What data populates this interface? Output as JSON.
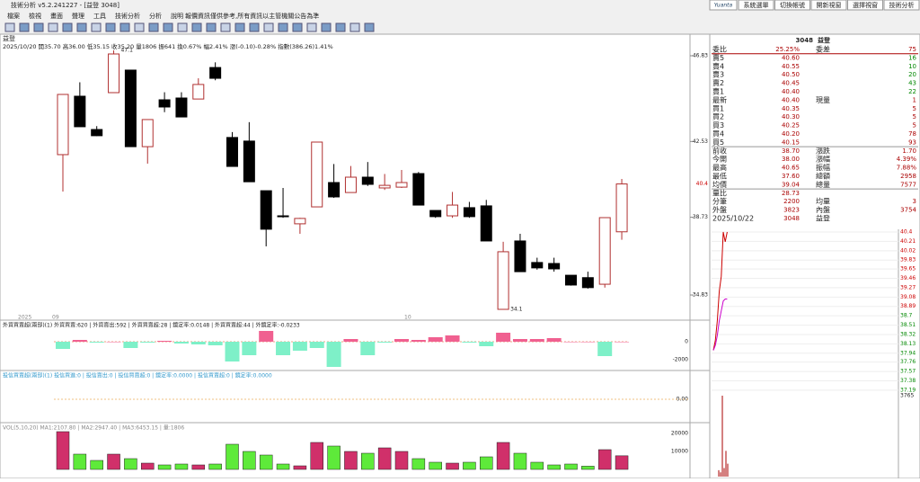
{
  "window": {
    "title": "技術分析 v5.2.241227 - [益登 3048]",
    "logo": "Yuanta",
    "buttons": [
      "系統選單",
      "切換帳號",
      "開新視窗",
      "選擇視窗",
      "技術分析"
    ]
  },
  "menu": [
    "檔案",
    "檢視",
    "畫面",
    "聲理",
    "工具",
    "技術分析",
    "分析",
    "說明"
  ],
  "notice": "報價資訊僅供參考,所有資訊以主管機關公告為準",
  "chart": {
    "stock": "益登",
    "info": "2025/10/20 開35.70 高36.00 低35.15 收35.20 量1806 振641 換0.67% 幅2.41% 漲(-0.10)-0.28% 指數(386.26)1.41%",
    "price_ticks": [
      46.83,
      42.53,
      38.73,
      34.83
    ],
    "current": 40.4,
    "high_mark": 47.1,
    "low_mark": 34.1,
    "dates": [
      "2025",
      "09",
      "10"
    ],
    "candles": [
      {
        "o": 41.87,
        "h": 44.89,
        "l": 40.02,
        "c": 44.89
      },
      {
        "o": 44.8,
        "h": 45.5,
        "l": 43.27,
        "c": 43.27
      },
      {
        "o": 43.13,
        "h": 43.3,
        "l": 42.8,
        "c": 42.82
      },
      {
        "o": 44.98,
        "h": 47.1,
        "l": 44.98,
        "c": 46.92
      },
      {
        "o": 46.11,
        "h": 46.11,
        "l": 42.27,
        "c": 42.27
      },
      {
        "o": 42.27,
        "h": 43.63,
        "l": 41.42,
        "c": 43.63
      },
      {
        "o": 44.62,
        "h": 45.0,
        "l": 44.0,
        "c": 44.26
      },
      {
        "o": 44.71,
        "h": 45.0,
        "l": 43.76,
        "c": 43.76
      },
      {
        "o": 44.66,
        "h": 45.7,
        "l": 44.66,
        "c": 45.39
      },
      {
        "o": 46.24,
        "h": 46.5,
        "l": 45.6,
        "c": 45.7
      },
      {
        "o": 42.73,
        "h": 43.0,
        "l": 41.28,
        "c": 41.28
      },
      {
        "o": 42.55,
        "h": 43.5,
        "l": 40.51,
        "c": 40.51
      },
      {
        "o": 40.06,
        "h": 40.06,
        "l": 37.27,
        "c": 38.13
      },
      {
        "o": 38.8,
        "h": 40.2,
        "l": 38.7,
        "c": 38.76
      },
      {
        "o": 38.4,
        "h": 38.7,
        "l": 37.9,
        "c": 38.67
      },
      {
        "o": 39.25,
        "h": 42.5,
        "l": 39.25,
        "c": 42.5
      },
      {
        "o": 40.47,
        "h": 41.4,
        "l": 39.7,
        "c": 39.75
      },
      {
        "o": 39.97,
        "h": 41.3,
        "l": 39.97,
        "c": 40.74
      },
      {
        "o": 40.74,
        "h": 41.5,
        "l": 40.3,
        "c": 40.38
      },
      {
        "o": 40.2,
        "h": 40.9,
        "l": 40.1,
        "c": 40.33
      },
      {
        "o": 40.24,
        "h": 41.1,
        "l": 40.2,
        "c": 40.47
      },
      {
        "o": 40.92,
        "h": 41.0,
        "l": 39.34,
        "c": 39.34
      },
      {
        "o": 39.07,
        "h": 39.07,
        "l": 38.7,
        "c": 38.76
      },
      {
        "o": 38.8,
        "h": 40.0,
        "l": 38.7,
        "c": 39.34
      },
      {
        "o": 39.21,
        "h": 39.5,
        "l": 38.7,
        "c": 38.76
      },
      {
        "o": 39.3,
        "h": 39.6,
        "l": 37.54,
        "c": 37.54
      },
      {
        "o": 34.11,
        "h": 37.5,
        "l": 34.1,
        "c": 37.0
      },
      {
        "o": 37.54,
        "h": 37.9,
        "l": 36.0,
        "c": 36.0
      },
      {
        "o": 36.46,
        "h": 36.7,
        "l": 36.1,
        "c": 36.19
      },
      {
        "o": 36.41,
        "h": 36.7,
        "l": 36.0,
        "c": 36.14
      },
      {
        "o": 35.82,
        "h": 35.82,
        "l": 35.3,
        "c": 35.33
      },
      {
        "o": 35.7,
        "h": 36.0,
        "l": 35.15,
        "c": 35.2
      },
      {
        "o": 35.37,
        "h": 38.71,
        "l": 35.2,
        "c": 38.71
      },
      {
        "o": 38.0,
        "h": 40.65,
        "l": 37.6,
        "c": 40.4
      }
    ]
  },
  "foreign": {
    "header": "外資買賣超(兩部)(1) 外資買賣:620 | 外資賣出:592 | 外資買賣超:28 | 鏡定率:0.0148 | 外資買賣超:44 | 外鏡定率:-0.0233",
    "ticks": [
      0,
      -2000
    ],
    "values": [
      -800,
      200,
      -100,
      0,
      -700,
      -100,
      100,
      -200,
      -300,
      -400,
      -2200,
      -1500,
      1200,
      -1500,
      -1000,
      -700,
      -2800,
      300,
      -1500,
      -100,
      300,
      200,
      500,
      700,
      -100,
      -500,
      1000,
      300,
      300,
      400,
      0,
      0,
      -1600,
      0
    ]
  },
  "trust": {
    "header": "投信買賣超(兩部)(1) 投信買進:0 | 投信賣出:0 | 投信買賣超:0 | 鏡定率:0.0000 | 投信買賣超:0 | 鏡定率:0.0000",
    "ticks": [
      {
        "value": 0,
        "label": "0.00"
      }
    ]
  },
  "volume": {
    "header": "VOL(5,10,20) MA1:2107.80 | MA2:2947.40 | MA3:6453.15 | 量:1806",
    "ticks": [
      20000,
      10000
    ],
    "values": [
      21000,
      8500,
      5000,
      8500,
      6000,
      3500,
      2500,
      3000,
      2500,
      3000,
      14000,
      10000,
      8000,
      3000,
      2000,
      15000,
      13000,
      10000,
      9000,
      12000,
      10000,
      6000,
      4000,
      3500,
      4000,
      7000,
      15000,
      9000,
      4000,
      2500,
      3000,
      1806,
      11000,
      7577
    ]
  },
  "quote": {
    "head": [
      "3048",
      "益登"
    ],
    "rows": [
      [
        "委比",
        "25.25%",
        "委差",
        "75"
      ],
      [
        "賣5",
        "40.60",
        "",
        "16"
      ],
      [
        "賣4",
        "40.55",
        "",
        "10"
      ],
      [
        "賣3",
        "40.50",
        "",
        "20"
      ],
      [
        "賣2",
        "40.45",
        "",
        "43"
      ],
      [
        "賣1",
        "40.40",
        "",
        "22"
      ],
      [
        "最新",
        "40.40",
        "現量",
        "1"
      ],
      [
        "買1",
        "40.35",
        "",
        "5"
      ],
      [
        "買2",
        "40.30",
        "",
        "5"
      ],
      [
        "買3",
        "40.25",
        "",
        "5"
      ],
      [
        "買4",
        "40.20",
        "",
        "78"
      ],
      [
        "買5",
        "40.15",
        "",
        "93"
      ],
      [
        "前收",
        "38.70",
        "漲跌",
        "1.70"
      ],
      [
        "今開",
        "38.00",
        "漲幅",
        "4.39%"
      ],
      [
        "最高",
        "40.65",
        "振幅",
        "7.88%"
      ],
      [
        "最低",
        "37.60",
        "總額",
        "2958"
      ],
      [
        "均價",
        "39.04",
        "總量",
        "7577"
      ],
      [
        "量比",
        "28.73",
        "",
        ""
      ],
      [
        "分筆",
        "2200",
        "均量",
        "3"
      ],
      [
        "外盤",
        "3823",
        "內盤",
        "3754"
      ],
      [
        "2025/10/22",
        "3048",
        "益登",
        ""
      ]
    ]
  },
  "intraday": {
    "ticks": [
      40.4,
      40.21,
      40.02,
      39.83,
      39.65,
      39.46,
      39.27,
      39.08,
      38.89,
      38.7,
      38.51,
      38.32,
      38.13,
      37.94,
      37.76,
      37.57,
      37.38,
      37.19
    ],
    "prices": [
      38.0,
      38.2,
      38.6,
      39.2,
      39.5,
      40.4,
      40.2,
      40.4
    ],
    "avg": [
      38.0,
      38.1,
      38.3,
      38.6,
      38.8,
      39.0,
      39.04,
      39.04
    ],
    "volume_tick": 3765,
    "volume": [
      300,
      200,
      3765,
      400,
      1200,
      600
    ]
  }
}
